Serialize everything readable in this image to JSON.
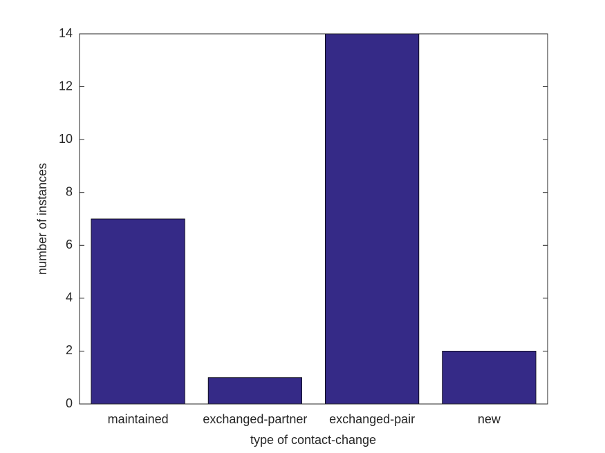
{
  "chart_data": {
    "type": "bar",
    "x_label": "type of contact-change",
    "y_label": "number of instances",
    "categories": [
      "maintained",
      "exchanged-partner",
      "exchanged-pair",
      "new"
    ],
    "values": [
      7,
      1,
      14,
      2
    ],
    "color": "#352a87",
    "ylim": [
      0,
      14
    ],
    "yticks": [
      0,
      2,
      4,
      6,
      8,
      10,
      12,
      14
    ],
    "grid": false
  }
}
